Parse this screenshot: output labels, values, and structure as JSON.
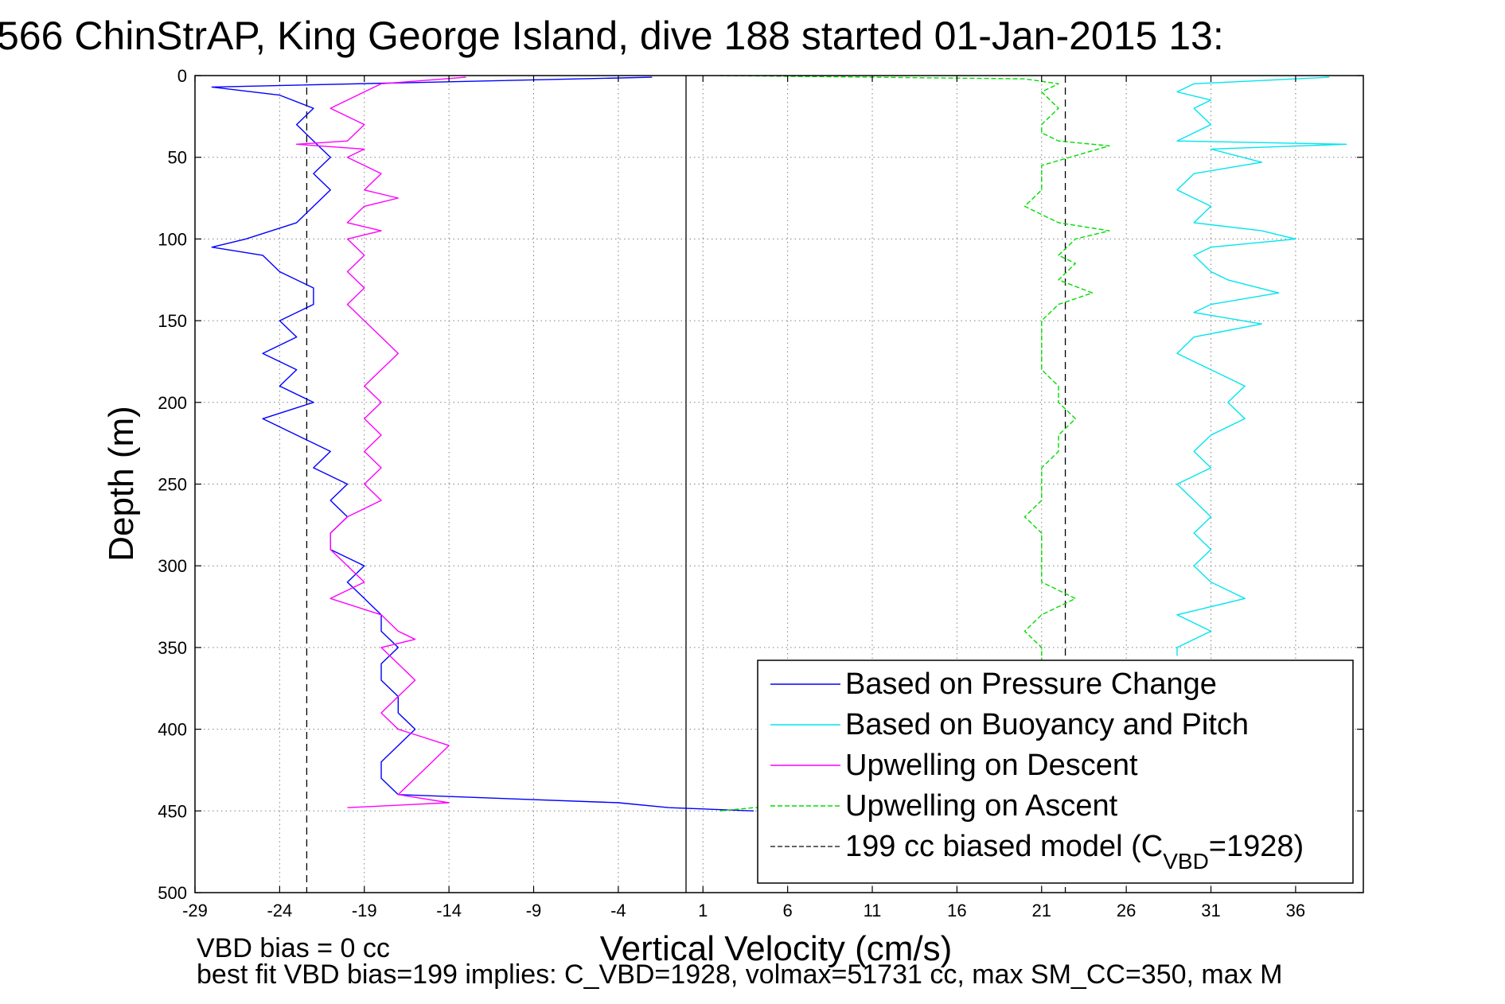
{
  "figure": {
    "title": "566 ChinStrAP, King George Island, dive 188 started 01-Jan-2015 13:",
    "footer_line1": "VBD bias = 0 cc",
    "footer_line2": "best fit VBD bias=199 implies: C_VBD=1928, volmax=51731 cc, max SM_CC=350, max M"
  },
  "chart_data": {
    "type": "line",
    "xlabel": "Vertical Velocity (cm/s)",
    "ylabel": "Depth (m)",
    "xlim": [
      -29,
      40
    ],
    "ylim": [
      0,
      500
    ],
    "y_reversed": true,
    "xticks": [
      -29,
      -24,
      -19,
      -14,
      -9,
      -4,
      1,
      6,
      11,
      16,
      21,
      26,
      31,
      36
    ],
    "yticks": [
      0,
      50,
      100,
      150,
      200,
      250,
      300,
      350,
      400,
      450,
      500
    ],
    "grid": true,
    "legend_position": "bottom-right",
    "vertical_lines": [
      {
        "x": -22.4,
        "style": "dashed",
        "color": "#000000"
      },
      {
        "x": 22.4,
        "style": "dashed",
        "color": "#000000"
      },
      {
        "x": 0,
        "style": "solid",
        "color": "#000000"
      }
    ],
    "series": [
      {
        "name": "Based on Pressure Change",
        "color": "#0000ff",
        "style": "solid",
        "points": [
          [
            -2,
            1
          ],
          [
            -28,
            7
          ],
          [
            -24,
            12
          ],
          [
            -22,
            20
          ],
          [
            -23,
            30
          ],
          [
            -22,
            40
          ],
          [
            -21,
            50
          ],
          [
            -22,
            60
          ],
          [
            -21,
            70
          ],
          [
            -22,
            80
          ],
          [
            -23,
            90
          ],
          [
            -26,
            100
          ],
          [
            -28,
            105
          ],
          [
            -25,
            110
          ],
          [
            -24,
            120
          ],
          [
            -22,
            130
          ],
          [
            -22,
            140
          ],
          [
            -24,
            150
          ],
          [
            -23,
            160
          ],
          [
            -25,
            170
          ],
          [
            -23,
            180
          ],
          [
            -24,
            190
          ],
          [
            -22,
            200
          ],
          [
            -25,
            210
          ],
          [
            -23,
            220
          ],
          [
            -21,
            230
          ],
          [
            -22,
            240
          ],
          [
            -20,
            250
          ],
          [
            -21,
            260
          ],
          [
            -20,
            270
          ],
          [
            -21,
            280
          ],
          [
            -21,
            290
          ],
          [
            -19,
            300
          ],
          [
            -20,
            310
          ],
          [
            -19,
            320
          ],
          [
            -18,
            330
          ],
          [
            -18,
            340
          ],
          [
            -17,
            350
          ],
          [
            -18,
            360
          ],
          [
            -18,
            370
          ],
          [
            -17,
            380
          ],
          [
            -17,
            390
          ],
          [
            -16,
            400
          ],
          [
            -17,
            410
          ],
          [
            -18,
            420
          ],
          [
            -18,
            430
          ],
          [
            -17,
            440
          ],
          [
            -4,
            445
          ],
          [
            -1,
            448
          ],
          [
            4,
            450
          ]
        ]
      },
      {
        "name": "Based on Buoyancy and Pitch",
        "color": "#00e5ee",
        "style": "solid",
        "points": [
          [
            38,
            1
          ],
          [
            30,
            5
          ],
          [
            29,
            10
          ],
          [
            31,
            15
          ],
          [
            30,
            20
          ],
          [
            31,
            30
          ],
          [
            29,
            40
          ],
          [
            39,
            42
          ],
          [
            31,
            45
          ],
          [
            34,
            53
          ],
          [
            30,
            60
          ],
          [
            29,
            70
          ],
          [
            31,
            80
          ],
          [
            30,
            90
          ],
          [
            34,
            95
          ],
          [
            36,
            100
          ],
          [
            31,
            105
          ],
          [
            30,
            110
          ],
          [
            31,
            120
          ],
          [
            32,
            125
          ],
          [
            35,
            133
          ],
          [
            31,
            140
          ],
          [
            30,
            145
          ],
          [
            34,
            152
          ],
          [
            30,
            160
          ],
          [
            29,
            170
          ],
          [
            31,
            180
          ],
          [
            33,
            190
          ],
          [
            32,
            200
          ],
          [
            33,
            210
          ],
          [
            31,
            220
          ],
          [
            30,
            230
          ],
          [
            31,
            240
          ],
          [
            29,
            250
          ],
          [
            30,
            260
          ],
          [
            31,
            270
          ],
          [
            30,
            280
          ],
          [
            31,
            290
          ],
          [
            30,
            300
          ],
          [
            31,
            310
          ],
          [
            33,
            320
          ],
          [
            31,
            325
          ],
          [
            29,
            330
          ],
          [
            31,
            340
          ],
          [
            29,
            350
          ],
          [
            29,
            355
          ]
        ]
      },
      {
        "name": "Upwelling on Descent",
        "color": "#ff00ff",
        "style": "solid",
        "points": [
          [
            -13,
            1
          ],
          [
            -18,
            5
          ],
          [
            -19,
            10
          ],
          [
            -21,
            20
          ],
          [
            -19,
            30
          ],
          [
            -20,
            40
          ],
          [
            -23,
            42
          ],
          [
            -19,
            45
          ],
          [
            -20,
            50
          ],
          [
            -18,
            60
          ],
          [
            -19,
            70
          ],
          [
            -17,
            75
          ],
          [
            -19,
            80
          ],
          [
            -20,
            90
          ],
          [
            -18,
            95
          ],
          [
            -20,
            100
          ],
          [
            -19,
            110
          ],
          [
            -20,
            120
          ],
          [
            -19,
            130
          ],
          [
            -20,
            140
          ],
          [
            -19,
            150
          ],
          [
            -18,
            160
          ],
          [
            -17,
            170
          ],
          [
            -18,
            180
          ],
          [
            -19,
            190
          ],
          [
            -18,
            200
          ],
          [
            -19,
            210
          ],
          [
            -18,
            220
          ],
          [
            -19,
            230
          ],
          [
            -18,
            240
          ],
          [
            -19,
            250
          ],
          [
            -18,
            260
          ],
          [
            -20,
            270
          ],
          [
            -21,
            280
          ],
          [
            -21,
            290
          ],
          [
            -20,
            300
          ],
          [
            -19,
            310
          ],
          [
            -21,
            320
          ],
          [
            -18,
            330
          ],
          [
            -17,
            340
          ],
          [
            -16,
            345
          ],
          [
            -18,
            350
          ],
          [
            -17,
            360
          ],
          [
            -16,
            370
          ],
          [
            -17,
            380
          ],
          [
            -18,
            390
          ],
          [
            -17,
            400
          ],
          [
            -14,
            410
          ],
          [
            -15,
            420
          ],
          [
            -16,
            430
          ],
          [
            -17,
            440
          ],
          [
            -14,
            445
          ],
          [
            -20,
            448
          ]
        ]
      },
      {
        "name": "Upwelling on Ascent",
        "color": "#00dd00",
        "style": "dashed",
        "points": [
          [
            2,
            450
          ],
          [
            4,
            448
          ],
          [
            12,
            447
          ],
          [
            20,
            445
          ],
          [
            21,
            430
          ],
          [
            21,
            410
          ],
          [
            21,
            400
          ],
          [
            20,
            380
          ],
          [
            21,
            360
          ],
          [
            21,
            350
          ],
          [
            20,
            340
          ],
          [
            21,
            330
          ],
          [
            23,
            320
          ],
          [
            21,
            310
          ],
          [
            21,
            300
          ],
          [
            21,
            290
          ],
          [
            21,
            280
          ],
          [
            20,
            270
          ],
          [
            21,
            260
          ],
          [
            21,
            250
          ],
          [
            21,
            240
          ],
          [
            22,
            230
          ],
          [
            22,
            220
          ],
          [
            23,
            210
          ],
          [
            22,
            200
          ],
          [
            22,
            190
          ],
          [
            21,
            180
          ],
          [
            21,
            170
          ],
          [
            21,
            160
          ],
          [
            21,
            150
          ],
          [
            22,
            140
          ],
          [
            24,
            133
          ],
          [
            22,
            125
          ],
          [
            23,
            115
          ],
          [
            22,
            110
          ],
          [
            23,
            100
          ],
          [
            25,
            95
          ],
          [
            22,
            90
          ],
          [
            20,
            80
          ],
          [
            21,
            70
          ],
          [
            21,
            60
          ],
          [
            21,
            55
          ],
          [
            25,
            43
          ],
          [
            22,
            40
          ],
          [
            21,
            35
          ],
          [
            21,
            30
          ],
          [
            22,
            20
          ],
          [
            21,
            10
          ],
          [
            22,
            5
          ],
          [
            20,
            2
          ],
          [
            2,
            0
          ]
        ]
      }
    ],
    "legend": [
      {
        "label": "Based on Pressure Change",
        "color": "#0000ff",
        "style": "solid"
      },
      {
        "label": "Based on Buoyancy and Pitch",
        "color": "#00e5ee",
        "style": "solid"
      },
      {
        "label": "Upwelling on Descent",
        "color": "#ff00ff",
        "style": "solid"
      },
      {
        "label": "Upwelling on Ascent",
        "color": "#00dd00",
        "style": "dashed"
      },
      {
        "label": "199 cc biased model (C",
        "label_sub": "VBD",
        "label_tail": "=1928)",
        "color": "#333333",
        "style": "dashed"
      }
    ]
  }
}
